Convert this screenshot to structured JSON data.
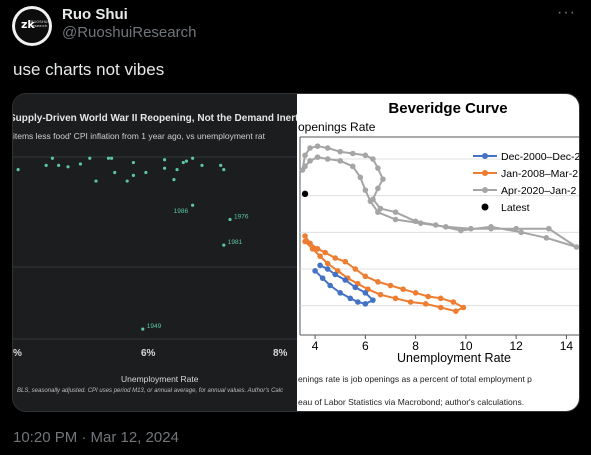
{
  "tweet": {
    "author_name": "Ruo Shui",
    "author_handle": "@RuoshuiResearch",
    "avatar_mark": "zk",
    "avatar_text": [
      "RUOSHUI",
      "research"
    ],
    "more_icon": "more-horizontal-icon",
    "text": "use charts not vibes",
    "timestamp": "10:20 PM · Mar 12, 2024"
  },
  "left_chart": {
    "title": "Supply-Driven World War II Reopening, Not the Demand Inert",
    "subtitle": "items less food' CPI inflation from 1 year ago, vs unemployment rat",
    "xlabel": "Unemployment Rate",
    "footer": "BLS, seasonally adjusted. CPI uses period M13, or annual average, for annual values. Author's Calc",
    "x_ticks": [
      "%",
      "6%",
      "8%"
    ],
    "colors": {
      "background": "#1b1d1f",
      "point": "#5ec5a4",
      "grid": "#33373a",
      "text": "#d8d8d8"
    }
  },
  "chart_data": [
    {
      "type": "scatter",
      "title": "Supply-Driven World War II Reopening, Not the Demand Inert",
      "subtitle": "items less food' CPI inflation from 1 year ago, vs unemployment rat",
      "xlabel": "Unemployment Rate",
      "x_unit": "% unemployment",
      "xlim": [
        4.0,
        8.3
      ],
      "points": [
        {
          "x": 4.6,
          "y": 9.35
        },
        {
          "x": 5.2,
          "y": 9.35
        },
        {
          "x": 5.5,
          "y": 9.35
        },
        {
          "x": 5.55,
          "y": 9.35
        },
        {
          "x": 6.4,
          "y": 9.3
        },
        {
          "x": 6.7,
          "y": 9.2
        },
        {
          "x": 6.75,
          "y": 9.25
        },
        {
          "x": 6.85,
          "y": 9.35
        },
        {
          "x": 5.9,
          "y": 9.2
        },
        {
          "x": 7.0,
          "y": 9.1
        },
        {
          "x": 7.3,
          "y": 9.1
        },
        {
          "x": 4.5,
          "y": 9.1
        },
        {
          "x": 4.7,
          "y": 9.1
        },
        {
          "x": 4.85,
          "y": 9.05
        },
        {
          "x": 5.05,
          "y": 9.15
        },
        {
          "x": 6.4,
          "y": 9.0
        },
        {
          "x": 6.6,
          "y": 8.95
        },
        {
          "x": 7.35,
          "y": 8.95
        },
        {
          "x": 5.6,
          "y": 8.85
        },
        {
          "x": 5.9,
          "y": 8.75
        },
        {
          "x": 6.1,
          "y": 8.85
        },
        {
          "x": 5.3,
          "y": 8.55
        },
        {
          "x": 5.8,
          "y": 8.55
        },
        {
          "x": 6.55,
          "y": 8.6
        },
        {
          "x": 4.05,
          "y": 8.95
        },
        {
          "x": 6.85,
          "y": 7.7,
          "label": "1986"
        },
        {
          "x": 7.45,
          "y": 7.2,
          "label": "1976"
        },
        {
          "x": 7.35,
          "y": 6.3,
          "label": "1981"
        },
        {
          "x": 6.05,
          "y": 3.35,
          "label": "1949"
        }
      ]
    },
    {
      "type": "line",
      "title": "Beveridge Curve",
      "ylabel": "openings Rate",
      "xlabel": "Unemployment Rate",
      "note": "enings rate is job openings as a percent of total employment p",
      "source": "eau of Labor Statistics via Macrobond; author's calculations.",
      "x_ticks": [
        "4",
        "6",
        "8",
        "10",
        "12",
        "14"
      ],
      "xlim": [
        3.4,
        14.5
      ],
      "ylim": [
        2.2,
        7.6
      ],
      "legend_position": "top-right",
      "series": [
        {
          "name": "Dec-2000–Dec-2",
          "color": "#4472c4",
          "points": [
            [
              4.0,
              3.95
            ],
            [
              4.3,
              3.75
            ],
            [
              4.6,
              3.55
            ],
            [
              5.0,
              3.35
            ],
            [
              5.4,
              3.2
            ],
            [
              5.7,
              3.1
            ],
            [
              6.0,
              3.05
            ],
            [
              6.3,
              3.15
            ],
            [
              6.0,
              3.35
            ],
            [
              5.6,
              3.5
            ],
            [
              5.2,
              3.7
            ],
            [
              4.8,
              3.85
            ],
            [
              4.5,
              4.0
            ],
            [
              4.2,
              4.1
            ]
          ]
        },
        {
          "name": "Jan-2008–Mar-2",
          "color": "#ed7d31",
          "points": [
            [
              3.6,
              4.9
            ],
            [
              3.8,
              4.7
            ],
            [
              4.1,
              4.55
            ],
            [
              4.4,
              4.45
            ],
            [
              4.8,
              4.3
            ],
            [
              5.2,
              4.2
            ],
            [
              5.6,
              4.0
            ],
            [
              6.0,
              3.8
            ],
            [
              6.5,
              3.65
            ],
            [
              7.0,
              3.55
            ],
            [
              7.5,
              3.45
            ],
            [
              8.0,
              3.35
            ],
            [
              8.5,
              3.25
            ],
            [
              9.0,
              3.2
            ],
            [
              9.5,
              3.1
            ],
            [
              9.9,
              2.95
            ],
            [
              9.6,
              2.85
            ],
            [
              9.0,
              2.95
            ],
            [
              8.4,
              3.05
            ],
            [
              7.8,
              3.1
            ],
            [
              7.2,
              3.2
            ],
            [
              6.6,
              3.3
            ],
            [
              6.1,
              3.45
            ],
            [
              5.7,
              3.6
            ],
            [
              5.3,
              3.75
            ],
            [
              4.9,
              3.95
            ],
            [
              4.5,
              4.15
            ],
            [
              4.2,
              4.35
            ],
            [
              3.9,
              4.55
            ],
            [
              3.6,
              4.75
            ]
          ]
        },
        {
          "name": "Apr-2020–Jan-2",
          "color": "#a5a5a5",
          "points": [
            [
              3.5,
              6.7
            ],
            [
              3.6,
              7.1
            ],
            [
              3.8,
              7.3
            ],
            [
              4.1,
              7.35
            ],
            [
              4.5,
              7.3
            ],
            [
              5.0,
              7.2
            ],
            [
              5.5,
              7.15
            ],
            [
              6.0,
              7.1
            ],
            [
              6.3,
              7.0
            ],
            [
              6.5,
              6.75
            ],
            [
              6.7,
              6.45
            ],
            [
              6.5,
              6.2
            ],
            [
              6.3,
              5.9
            ],
            [
              6.6,
              5.65
            ],
            [
              7.2,
              5.55
            ],
            [
              8.0,
              5.3
            ],
            [
              8.8,
              5.2
            ],
            [
              9.8,
              5.05
            ],
            [
              11.0,
              5.15
            ],
            [
              12.2,
              5.0
            ],
            [
              13.2,
              4.85
            ],
            [
              14.4,
              4.6
            ],
            [
              13.3,
              5.1
            ],
            [
              12.0,
              5.1
            ],
            [
              11.0,
              5.1
            ],
            [
              10.2,
              5.1
            ],
            [
              9.2,
              5.15
            ],
            [
              8.2,
              5.25
            ],
            [
              7.2,
              5.35
            ],
            [
              6.5,
              5.55
            ],
            [
              6.2,
              5.85
            ],
            [
              6.0,
              6.15
            ],
            [
              5.8,
              6.5
            ],
            [
              5.5,
              6.8
            ],
            [
              5.0,
              6.95
            ],
            [
              4.5,
              7.0
            ],
            [
              4.1,
              7.05
            ],
            [
              3.8,
              6.95
            ],
            [
              3.6,
              6.8
            ]
          ]
        }
      ],
      "latest": {
        "name": "Latest",
        "color": "#000000",
        "x": 3.6,
        "y": 6.05
      }
    }
  ]
}
